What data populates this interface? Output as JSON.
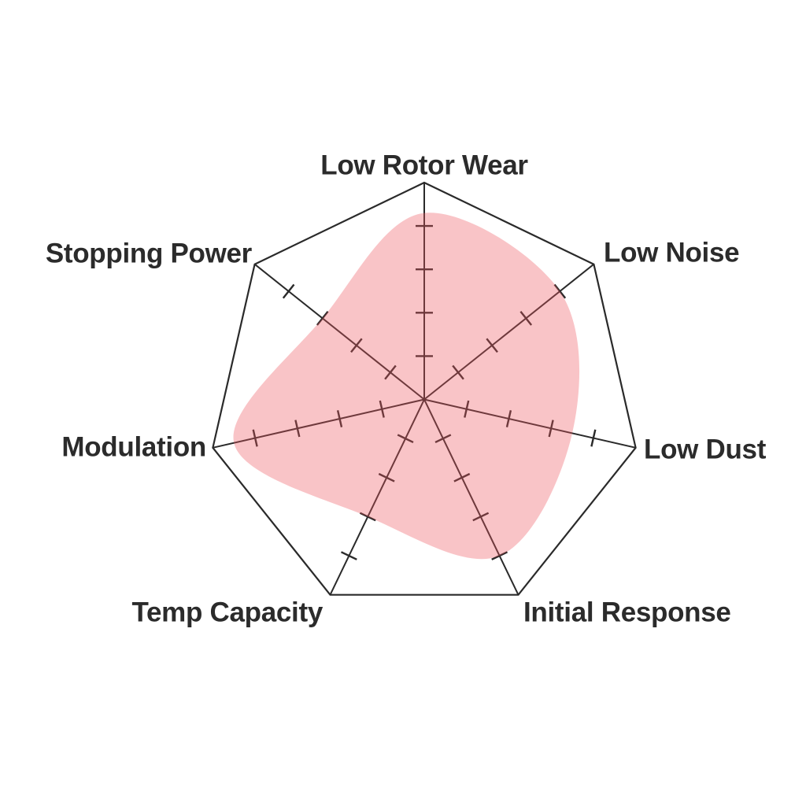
{
  "chart_data": {
    "type": "radar",
    "title": "",
    "axes": [
      {
        "label": "Low Rotor Wear",
        "value": 8.6
      },
      {
        "label": "Low Noise",
        "value": 8
      },
      {
        "label": "Low Dust",
        "value": 7
      },
      {
        "label": "Initial Response",
        "value": 8
      },
      {
        "label": "Temp Capacity",
        "value": 6
      },
      {
        "label": "Modulation",
        "value": 9
      },
      {
        "label": "Stopping Power",
        "value": 6
      }
    ],
    "scale": {
      "min": 0,
      "max": 10,
      "tick_values": [
        2,
        4,
        6,
        8
      ],
      "rings": 5,
      "gridlines": "spokes-with-ticks-only",
      "outer_shape": "heptagon"
    },
    "style": {
      "smooth": true,
      "fill_base_hex": "#ee565f",
      "fill_opacity": 0.35,
      "fill_color": "rgba(238,86,95,0.35)",
      "grid_color": "#2a2a2a",
      "label_color": "#2b2b2b",
      "background_color": "#ffffff",
      "legend": "none"
    }
  }
}
